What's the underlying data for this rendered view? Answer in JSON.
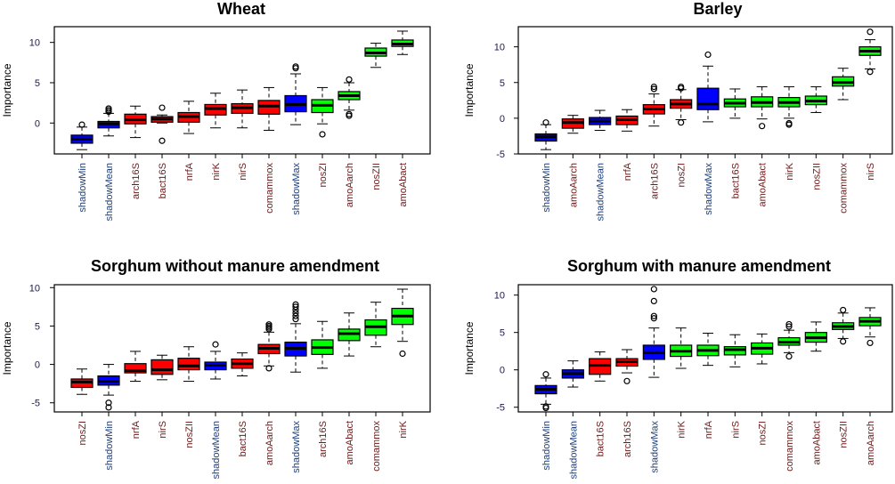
{
  "colors": {
    "shadow": "#0000ff",
    "rejected": "#ff0000",
    "confirmed": "#00ff00"
  },
  "chart_data": [
    {
      "type": "box",
      "title": "Wheat",
      "ylabel": "Importance",
      "ylim": [
        -3.83,
        11.95
      ],
      "yticks": [
        0,
        5,
        10
      ],
      "boxes": [
        {
          "label": "shadowMin",
          "group": "shadow",
          "stats": [
            -3.3,
            -2.5,
            -2.0,
            -1.5,
            -0.5
          ],
          "outliers": [
            -0.2
          ]
        },
        {
          "label": "shadowMean",
          "group": "shadow",
          "stats": [
            -1.6,
            -0.6,
            -0.1,
            0.2,
            1.2
          ],
          "outliers": [
            1.4,
            1.6,
            1.8
          ]
        },
        {
          "label": "arch16S",
          "group": "rejected",
          "stats": [
            -1.8,
            -0.1,
            0.4,
            1.1,
            2.1
          ],
          "outliers": []
        },
        {
          "label": "bact16S",
          "group": "rejected",
          "stats": [
            0.0,
            0.1,
            0.5,
            0.8,
            1.0
          ],
          "outliers": [
            1.9,
            -2.2
          ]
        },
        {
          "label": "nrfA",
          "group": "rejected",
          "stats": [
            -1.3,
            0.1,
            0.8,
            1.3,
            2.7
          ],
          "outliers": []
        },
        {
          "label": "nirK",
          "group": "rejected",
          "stats": [
            -0.6,
            1.0,
            1.8,
            2.3,
            3.7
          ],
          "outliers": []
        },
        {
          "label": "nirS",
          "group": "rejected",
          "stats": [
            -0.6,
            1.2,
            1.9,
            2.4,
            4.1
          ],
          "outliers": []
        },
        {
          "label": "comammox",
          "group": "rejected",
          "stats": [
            -0.9,
            1.1,
            2.1,
            2.8,
            4.4
          ],
          "outliers": []
        },
        {
          "label": "shadowMax",
          "group": "shadow",
          "stats": [
            -0.2,
            1.4,
            2.3,
            3.4,
            6.1
          ],
          "outliers": [
            6.8,
            7.0
          ]
        },
        {
          "label": "nosZI",
          "group": "confirmed",
          "stats": [
            -0.1,
            1.3,
            2.2,
            2.9,
            4.4
          ],
          "outliers": [
            -1.4
          ]
        },
        {
          "label": "amoAarch",
          "group": "confirmed",
          "stats": [
            1.6,
            2.9,
            3.4,
            3.9,
            5.0
          ],
          "outliers": [
            5.4,
            0.9,
            1.1
          ]
        },
        {
          "label": "nosZII",
          "group": "confirmed",
          "stats": [
            6.9,
            8.3,
            8.7,
            9.3,
            9.9
          ],
          "outliers": []
        },
        {
          "label": "amoAbact",
          "group": "confirmed",
          "stats": [
            8.5,
            9.5,
            9.8,
            10.3,
            11.4
          ],
          "outliers": []
        }
      ]
    },
    {
      "type": "box",
      "title": "Barley",
      "ylabel": "Importance",
      "ylim": [
        -5,
        12.82
      ],
      "yticks": [
        -5,
        0,
        5,
        10
      ],
      "boxes": [
        {
          "label": "shadowMin",
          "group": "shadow",
          "stats": [
            -4.4,
            -3.2,
            -2.6,
            -2.2,
            -0.9
          ],
          "outliers": [
            -0.6
          ]
        },
        {
          "label": "amoAarch",
          "group": "rejected",
          "stats": [
            -2.1,
            -1.4,
            -0.6,
            -0.1,
            0.4
          ],
          "outliers": []
        },
        {
          "label": "shadowMean",
          "group": "shadow",
          "stats": [
            -1.7,
            -0.9,
            -0.4,
            0.1,
            1.1
          ],
          "outliers": []
        },
        {
          "label": "nrfA",
          "group": "rejected",
          "stats": [
            -1.8,
            -0.9,
            -0.2,
            0.3,
            1.2
          ],
          "outliers": []
        },
        {
          "label": "arch16S",
          "group": "rejected",
          "stats": [
            -1.1,
            0.6,
            1.3,
            1.9,
            3.4
          ],
          "outliers": [
            4.1,
            4.4
          ]
        },
        {
          "label": "nosZI",
          "group": "rejected",
          "stats": [
            -0.2,
            1.4,
            2.0,
            2.6,
            4.0
          ],
          "outliers": [
            4.2,
            4.4,
            -0.6
          ]
        },
        {
          "label": "shadowMax",
          "group": "shadow",
          "stats": [
            -0.5,
            1.2,
            2.0,
            4.2,
            7.3
          ],
          "outliers": [
            8.9
          ]
        },
        {
          "label": "bact16S",
          "group": "confirmed",
          "stats": [
            0.0,
            1.6,
            2.1,
            2.7,
            4.1
          ],
          "outliers": []
        },
        {
          "label": "amoAbact",
          "group": "confirmed",
          "stats": [
            -0.1,
            1.6,
            2.2,
            3.0,
            4.4
          ],
          "outliers": [
            -1.1
          ]
        },
        {
          "label": "nirK",
          "group": "confirmed",
          "stats": [
            0.0,
            1.6,
            2.2,
            2.9,
            4.4
          ],
          "outliers": [
            -0.7,
            -0.9
          ]
        },
        {
          "label": "nosZII",
          "group": "confirmed",
          "stats": [
            0.8,
            1.9,
            2.4,
            3.1,
            4.4
          ],
          "outliers": []
        },
        {
          "label": "comammox",
          "group": "confirmed",
          "stats": [
            2.6,
            4.5,
            5.0,
            5.8,
            7.0
          ],
          "outliers": []
        },
        {
          "label": "nirS",
          "group": "confirmed",
          "stats": [
            6.9,
            8.8,
            9.4,
            10.0,
            11.0
          ],
          "outliers": [
            12.1,
            6.5
          ]
        }
      ]
    },
    {
      "type": "box",
      "title": "Sorghum without manure amendment",
      "ylabel": "Importance",
      "ylim": [
        -6.19,
        10.38
      ],
      "yticks": [
        -5,
        0,
        5,
        10
      ],
      "boxes": [
        {
          "label": "nosZI",
          "group": "rejected",
          "stats": [
            -3.9,
            -3.0,
            -2.3,
            -1.9,
            -0.6
          ],
          "outliers": []
        },
        {
          "label": "shadowMin",
          "group": "shadow",
          "stats": [
            -4.0,
            -2.7,
            -2.2,
            -1.5,
            0.0
          ],
          "outliers": [
            -5.0,
            -5.6
          ]
        },
        {
          "label": "nrfA",
          "group": "rejected",
          "stats": [
            -2.2,
            -1.1,
            -0.8,
            0.1,
            1.7
          ],
          "outliers": []
        },
        {
          "label": "nirS",
          "group": "rejected",
          "stats": [
            -2.0,
            -1.3,
            -0.7,
            0.6,
            1.2
          ],
          "outliers": []
        },
        {
          "label": "nosZII",
          "group": "rejected",
          "stats": [
            -2.2,
            -0.7,
            -0.2,
            0.8,
            2.3
          ],
          "outliers": []
        },
        {
          "label": "shadowMean",
          "group": "shadow",
          "stats": [
            -1.9,
            -0.7,
            -0.1,
            0.3,
            1.7
          ],
          "outliers": [
            2.6
          ]
        },
        {
          "label": "bact16S",
          "group": "rejected",
          "stats": [
            -1.5,
            -0.5,
            0.1,
            0.7,
            1.5
          ],
          "outliers": []
        },
        {
          "label": "amoAarch",
          "group": "rejected",
          "stats": [
            -0.2,
            1.4,
            2.1,
            2.6,
            4.2
          ],
          "outliers": [
            4.6,
            4.8,
            5.0,
            5.2,
            -0.5
          ]
        },
        {
          "label": "shadowMax",
          "group": "shadow",
          "stats": [
            -1.0,
            1.1,
            2.1,
            2.9,
            5.3
          ],
          "outliers": [
            5.9,
            6.3,
            6.7,
            7.1,
            7.5,
            7.8
          ]
        },
        {
          "label": "arch16S",
          "group": "confirmed",
          "stats": [
            -0.5,
            1.3,
            2.2,
            3.2,
            5.6
          ],
          "outliers": []
        },
        {
          "label": "amoAbact",
          "group": "confirmed",
          "stats": [
            1.1,
            3.1,
            4.0,
            4.6,
            6.7
          ],
          "outliers": []
        },
        {
          "label": "comammox",
          "group": "confirmed",
          "stats": [
            2.3,
            3.8,
            4.9,
            5.8,
            8.1
          ],
          "outliers": []
        },
        {
          "label": "nirK",
          "group": "confirmed",
          "stats": [
            3.0,
            5.2,
            6.3,
            7.3,
            9.8
          ],
          "outliers": [
            1.4
          ]
        }
      ]
    },
    {
      "type": "box",
      "title": "Sorghum with manure amendment",
      "ylabel": "Importance",
      "ylim": [
        -5.63,
        11.39
      ],
      "yticks": [
        -5,
        0,
        5,
        10
      ],
      "boxes": [
        {
          "label": "shadowMin",
          "group": "shadow",
          "stats": [
            -4.6,
            -3.2,
            -2.6,
            -2.1,
            -1.1
          ],
          "outliers": [
            -0.6,
            -4.9,
            -5.1
          ]
        },
        {
          "label": "shadowMean",
          "group": "shadow",
          "stats": [
            -2.3,
            -1.1,
            -0.5,
            0.0,
            1.2
          ],
          "outliers": []
        },
        {
          "label": "bact16S",
          "group": "rejected",
          "stats": [
            -1.5,
            -0.6,
            0.6,
            1.5,
            2.4
          ],
          "outliers": []
        },
        {
          "label": "arch16S",
          "group": "rejected",
          "stats": [
            -0.4,
            0.5,
            1.1,
            1.5,
            2.7
          ],
          "outliers": [
            -1.5
          ]
        },
        {
          "label": "shadowMax",
          "group": "shadow",
          "stats": [
            -1.0,
            1.4,
            2.3,
            3.3,
            5.6
          ],
          "outliers": [
            6.9,
            7.2,
            9.2,
            10.8
          ]
        },
        {
          "label": "nirK",
          "group": "confirmed",
          "stats": [
            0.2,
            1.8,
            2.5,
            3.3,
            5.6
          ],
          "outliers": []
        },
        {
          "label": "nrfA",
          "group": "confirmed",
          "stats": [
            0.6,
            1.9,
            2.6,
            3.3,
            4.9
          ],
          "outliers": []
        },
        {
          "label": "nirS",
          "group": "confirmed",
          "stats": [
            0.4,
            2.0,
            2.7,
            3.1,
            4.7
          ],
          "outliers": []
        },
        {
          "label": "nosZI",
          "group": "confirmed",
          "stats": [
            0.8,
            2.1,
            2.9,
            3.6,
            4.8
          ],
          "outliers": []
        },
        {
          "label": "comammox",
          "group": "confirmed",
          "stats": [
            2.3,
            3.3,
            3.7,
            4.3,
            5.3
          ],
          "outliers": [
            5.8,
            6.1,
            1.8
          ]
        },
        {
          "label": "amoAbact",
          "group": "confirmed",
          "stats": [
            2.5,
            3.7,
            4.3,
            5.0,
            6.4
          ],
          "outliers": []
        },
        {
          "label": "nosZII",
          "group": "confirmed",
          "stats": [
            4.2,
            5.4,
            5.8,
            6.3,
            7.6
          ],
          "outliers": [
            8.0,
            3.8
          ]
        },
        {
          "label": "amoAarch",
          "group": "confirmed",
          "stats": [
            4.4,
            5.9,
            6.5,
            7.0,
            8.3
          ],
          "outliers": [
            3.6
          ]
        }
      ]
    }
  ]
}
